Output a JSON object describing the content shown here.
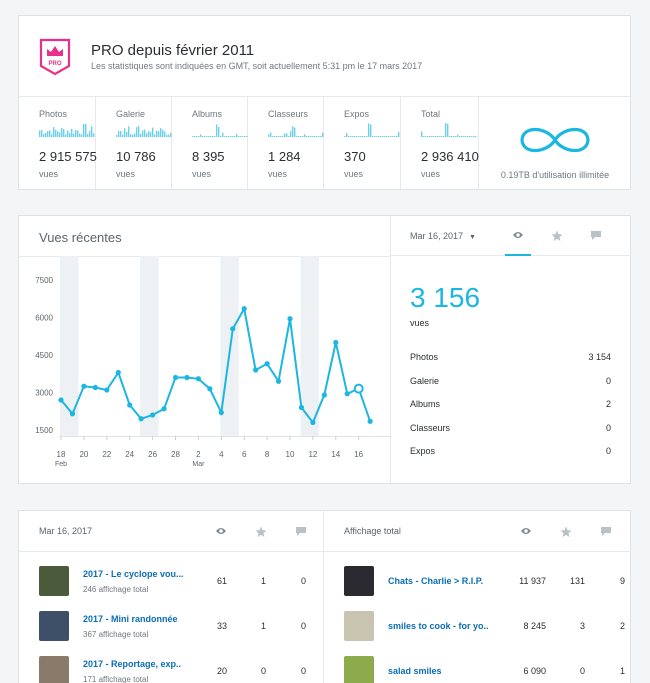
{
  "header": {
    "title": "PRO depuis février 2011",
    "subtitle": "Les statistiques sont indiquées en GMT, soit actuellement 5:31 pm le 17 mars 2017",
    "badge_text": "PRO",
    "badge_color": "#e8308a",
    "stats": [
      {
        "label": "Photos",
        "value": "2 915 575",
        "unit": "vues"
      },
      {
        "label": "Galerie",
        "value": "10 786",
        "unit": "vues"
      },
      {
        "label": "Albums",
        "value": "8 395",
        "unit": "vues"
      },
      {
        "label": "Classeurs",
        "value": "1 284",
        "unit": "vues"
      },
      {
        "label": "Expos",
        "value": "370",
        "unit": "vues"
      },
      {
        "label": "Total",
        "value": "2 936 410",
        "unit": "vues"
      }
    ],
    "usage": "0.19TB d'utilisation illimitée",
    "accent_color": "#1bb7e1"
  },
  "recent": {
    "title": "Vues récentes",
    "date": "Mar 16, 2017",
    "total": "3 156",
    "total_unit": "vues",
    "breakdown": [
      {
        "label": "Photos",
        "value": "3 154"
      },
      {
        "label": "Galerie",
        "value": "0"
      },
      {
        "label": "Albums",
        "value": "2"
      },
      {
        "label": "Classeurs",
        "value": "0"
      },
      {
        "label": "Expos",
        "value": "0"
      }
    ],
    "tabs": [
      "eye-icon",
      "star-icon",
      "comment-icon"
    ]
  },
  "chart_data": {
    "type": "line",
    "title": "Vues récentes",
    "xlabel": "",
    "ylabel": "",
    "ylim": [
      0,
      7500
    ],
    "y_ticks": [
      "1500",
      "3000",
      "4500",
      "6000",
      "7500"
    ],
    "x_ticks": [
      "18",
      "20",
      "22",
      "24",
      "26",
      "28",
      "2",
      "4",
      "6",
      "8",
      "10",
      "12",
      "14",
      "16"
    ],
    "x_sublabels": {
      "18": "Feb",
      "2": "Mar"
    },
    "x": [
      "Feb 18",
      "Feb 19",
      "Feb 20",
      "Feb 21",
      "Feb 22",
      "Feb 23",
      "Feb 24",
      "Feb 25",
      "Feb 26",
      "Feb 27",
      "Feb 28",
      "Mar 1",
      "Mar 2",
      "Mar 3",
      "Mar 4",
      "Mar 5",
      "Mar 6",
      "Mar 7",
      "Mar 8",
      "Mar 9",
      "Mar 10",
      "Mar 11",
      "Mar 12",
      "Mar 13",
      "Mar 14",
      "Mar 15",
      "Mar 16",
      "Mar 17"
    ],
    "values": [
      2700,
      2150,
      3250,
      3200,
      3100,
      3800,
      2500,
      1950,
      2100,
      2350,
      3600,
      3600,
      3550,
      3150,
      2200,
      5550,
      6350,
      3900,
      4150,
      3450,
      5950,
      2400,
      1800,
      2900,
      5000,
      2950,
      3156,
      1850
    ],
    "series_color": "#1bb7e1",
    "shaded_weeks": [
      "Feb 18-19",
      "Feb 25-26",
      "Mar 4-5",
      "Mar 11-12"
    ],
    "highlighted_point": "Mar 16"
  },
  "bottom": {
    "left": {
      "title": "Mar 16, 2017",
      "rows": [
        {
          "title": "2017 - Le cyclope vou...",
          "sub": "246 affichage total",
          "views": "61",
          "favs": "1",
          "comments": "0",
          "thumb": "#4a5a3a"
        },
        {
          "title": "2017 - Mini randonnée",
          "sub": "367 affichage total",
          "views": "33",
          "favs": "1",
          "comments": "0",
          "thumb": "#3d5068"
        },
        {
          "title": "2017 - Reportage, exp..",
          "sub": "171 affichage total",
          "views": "20",
          "favs": "0",
          "comments": "0",
          "thumb": "#8a7a6a"
        }
      ]
    },
    "right": {
      "title": "Affichage total",
      "rows": [
        {
          "title": "Chats - Charlie > R.I.P.",
          "views": "11 937",
          "favs": "131",
          "comments": "9",
          "thumb": "#2a2a30"
        },
        {
          "title": "smiles to cook - for yo..",
          "views": "8 245",
          "favs": "3",
          "comments": "2",
          "thumb": "#c9c4b0"
        },
        {
          "title": "salad smiles",
          "views": "6 090",
          "favs": "0",
          "comments": "1",
          "thumb": "#8cab4a"
        }
      ]
    }
  }
}
